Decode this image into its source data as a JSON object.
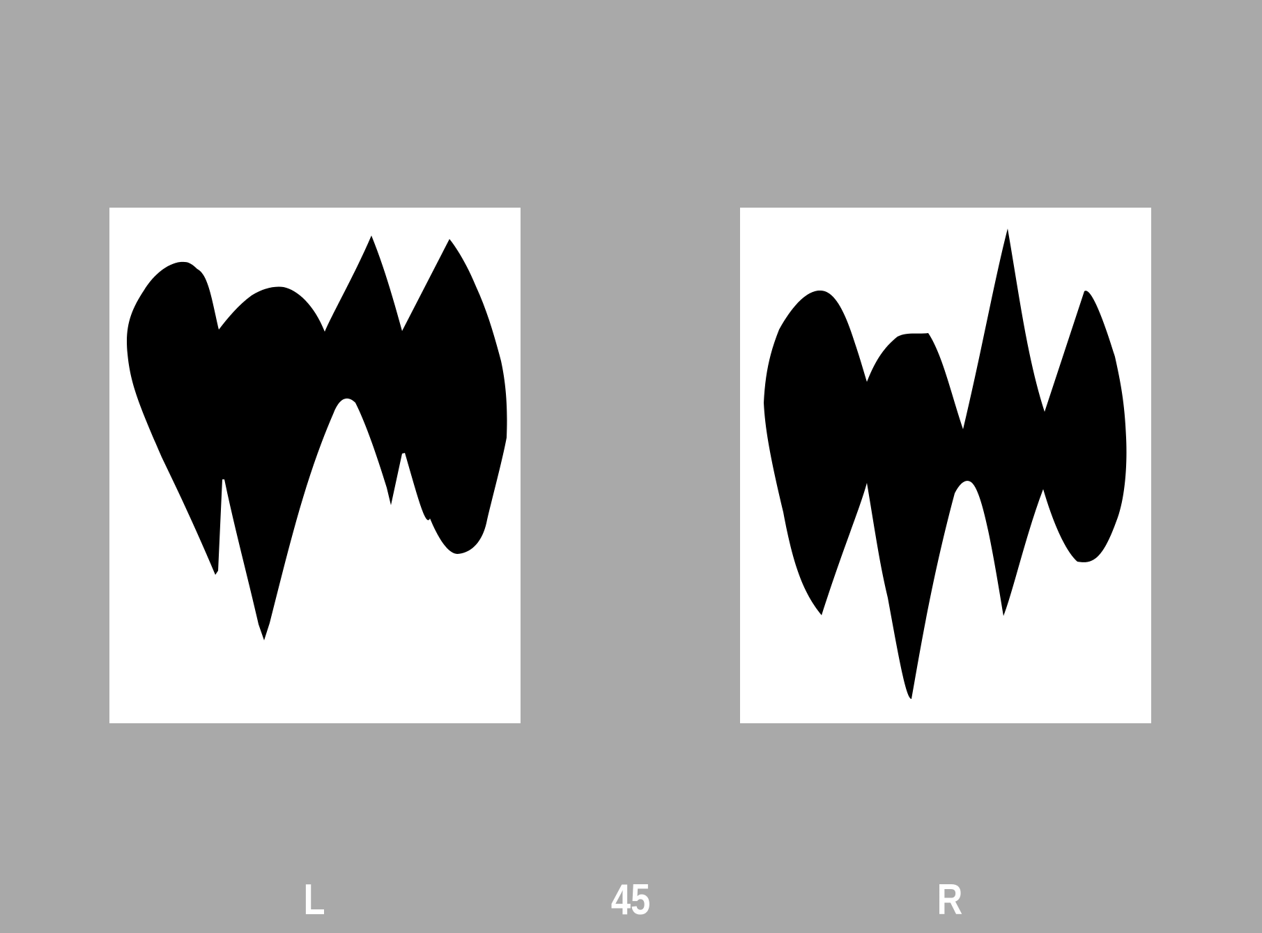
{
  "stimulus": {
    "background_color": "#a9a9a9",
    "panel_color": "#ffffff",
    "shape_color": "#000000"
  },
  "labels": {
    "left": "L",
    "center": "45",
    "right": "R"
  }
}
